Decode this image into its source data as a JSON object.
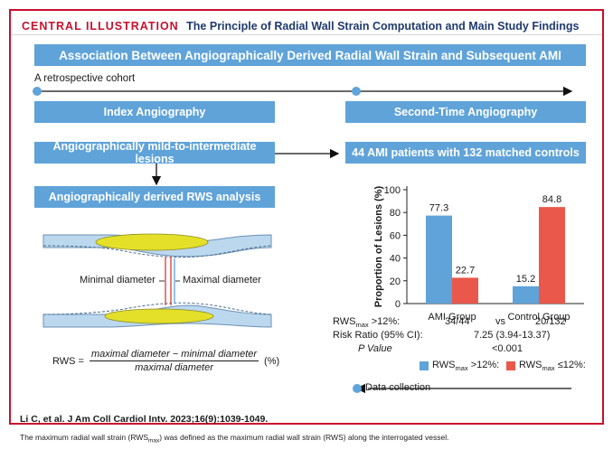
{
  "header": {
    "label": "CENTRAL ILLUSTRATION",
    "title": "The Principle of Radial Wall Strain Computation and Main Study Findings"
  },
  "banner": "Association Between Angiographically Derived Radial Wall Strain and Subsequent AMI",
  "cohort": "A retrospective cohort",
  "index_box": "Index Angiography",
  "second_box": "Second-Time Angiography",
  "lesions_box": "Angiographically mild-to-intermediate lesions",
  "patients_box": "44 AMI patients with 132 matched controls",
  "rws_box": "Angiographically derived RWS analysis",
  "vessel": {
    "min_label": "Minimal diameter",
    "max_label": "Maximal diameter"
  },
  "formula": {
    "lhs": "RWS =",
    "numerator": "maximal diameter − minimal diameter",
    "denominator": "maximal diameter",
    "unit": "(%)"
  },
  "stats": {
    "row1_label": "RWS",
    "row1_sub": "max",
    "row1_tail": " >12%:",
    "row1_ami": "34/44",
    "row1_vs": "vs",
    "row1_ctrl": "20/132",
    "row2_label": "Risk Ratio (95% CI):",
    "row2_value": "7.25 (3.94-13.37)",
    "row3_label": "P Value",
    "row3_value": "<0.001"
  },
  "data_collection": "Data collection",
  "citation": "Li C, et al. J Am Coll Cardiol Intv. 2023;16(9):1039-1049.",
  "caption": {
    "pre": "The maximum radial wall strain (RWS",
    "sub": "max",
    "post": ") was defined as the maximum radial wall strain (RWS) along the interrogated vessel."
  },
  "colors": {
    "blue": "#5fa3d9",
    "red": "#e9584a",
    "accent": "#c8102e",
    "navy": "#1f3a6e"
  },
  "chart_data": {
    "type": "bar",
    "categories": [
      "AMI Group",
      "Control Group"
    ],
    "series": [
      {
        "name": "RWSmax >12%:",
        "values": [
          77.3,
          15.2
        ]
      },
      {
        "name": "RWSmax ≤12%:",
        "values": [
          22.7,
          84.8
        ]
      }
    ],
    "ylabel": "Proportion of Lesions (%)",
    "ylim": [
      0,
      100
    ],
    "yticks": [
      0,
      20,
      40,
      60,
      80,
      100
    ],
    "legend": [
      {
        "main": "RWS",
        "sub": "max",
        "tail": " >12%:"
      },
      {
        "main": "RWS",
        "sub": "max",
        "tail": " ≤12%:"
      }
    ]
  }
}
